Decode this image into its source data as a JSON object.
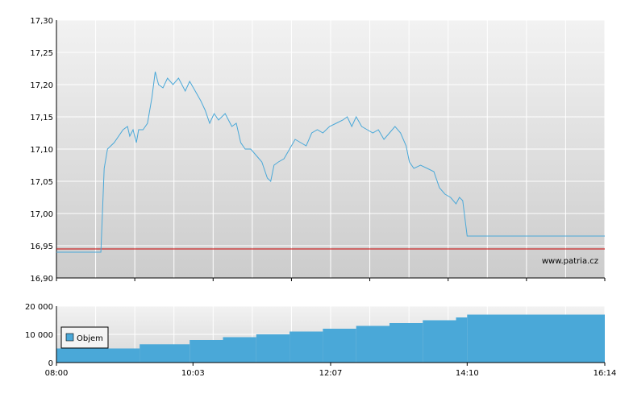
{
  "chart_data": [
    {
      "type": "line",
      "title": "",
      "xlabel": "",
      "ylabel": "",
      "ylim": [
        16.9,
        17.3
      ],
      "y_ticks": [
        "16,90",
        "16,95",
        "17,00",
        "17,05",
        "17,10",
        "17,15",
        "17,20",
        "17,25",
        "17,30"
      ],
      "grid": true,
      "reference_line": {
        "value": 16.945,
        "color": "#cc0000"
      },
      "watermark": "www.patria.cz",
      "series": [
        {
          "color": "#4aa8d8",
          "points": [
            [
              "08:00",
              16.94
            ],
            [
              "08:40",
              16.94
            ],
            [
              "08:43",
              17.07
            ],
            [
              "08:46",
              17.1
            ],
            [
              "08:52",
              17.11
            ],
            [
              "09:00",
              17.13
            ],
            [
              "09:04",
              17.135
            ],
            [
              "09:06",
              17.12
            ],
            [
              "09:09",
              17.13
            ],
            [
              "09:12",
              17.11
            ],
            [
              "09:14",
              17.13
            ],
            [
              "09:18",
              17.13
            ],
            [
              "09:22",
              17.14
            ],
            [
              "09:26",
              17.18
            ],
            [
              "09:29",
              17.22
            ],
            [
              "09:32",
              17.2
            ],
            [
              "09:36",
              17.195
            ],
            [
              "09:40",
              17.21
            ],
            [
              "09:45",
              17.2
            ],
            [
              "09:50",
              17.21
            ],
            [
              "09:56",
              17.19
            ],
            [
              "10:00",
              17.205
            ],
            [
              "10:05",
              17.19
            ],
            [
              "10:10",
              17.175
            ],
            [
              "10:14",
              17.16
            ],
            [
              "10:18",
              17.14
            ],
            [
              "10:22",
              17.155
            ],
            [
              "10:26",
              17.145
            ],
            [
              "10:32",
              17.155
            ],
            [
              "10:38",
              17.135
            ],
            [
              "10:42",
              17.14
            ],
            [
              "10:46",
              17.11
            ],
            [
              "10:50",
              17.1
            ],
            [
              "10:55",
              17.1
            ],
            [
              "11:00",
              17.09
            ],
            [
              "11:05",
              17.08
            ],
            [
              "11:10",
              17.055
            ],
            [
              "11:13",
              17.05
            ],
            [
              "11:16",
              17.075
            ],
            [
              "11:20",
              17.08
            ],
            [
              "11:25",
              17.085
            ],
            [
              "11:30",
              17.1
            ],
            [
              "11:35",
              17.115
            ],
            [
              "11:40",
              17.11
            ],
            [
              "11:45",
              17.105
            ],
            [
              "11:50",
              17.125
            ],
            [
              "11:55",
              17.13
            ],
            [
              "12:00",
              17.125
            ],
            [
              "12:06",
              17.135
            ],
            [
              "12:12",
              17.14
            ],
            [
              "12:18",
              17.145
            ],
            [
              "12:22",
              17.15
            ],
            [
              "12:26",
              17.135
            ],
            [
              "12:30",
              17.15
            ],
            [
              "12:35",
              17.135
            ],
            [
              "12:40",
              17.13
            ],
            [
              "12:45",
              17.125
            ],
            [
              "12:50",
              17.13
            ],
            [
              "12:55",
              17.115
            ],
            [
              "13:00",
              17.125
            ],
            [
              "13:05",
              17.135
            ],
            [
              "13:10",
              17.125
            ],
            [
              "13:15",
              17.105
            ],
            [
              "13:18",
              17.08
            ],
            [
              "13:22",
              17.07
            ],
            [
              "13:28",
              17.075
            ],
            [
              "13:34",
              17.07
            ],
            [
              "13:40",
              17.065
            ],
            [
              "13:45",
              17.04
            ],
            [
              "13:50",
              17.03
            ],
            [
              "13:55",
              17.025
            ],
            [
              "14:00",
              17.015
            ],
            [
              "14:03",
              17.025
            ],
            [
              "14:06",
              17.02
            ],
            [
              "14:10",
              16.965
            ],
            [
              "16:14",
              16.965
            ]
          ]
        }
      ]
    },
    {
      "type": "bar",
      "title": "",
      "xlabel": "",
      "ylabel": "",
      "ylim": [
        0,
        20000
      ],
      "y_ticks": [
        "0",
        "10 000",
        "20 000"
      ],
      "x_ticks": [
        "08:00",
        "10:03",
        "12:07",
        "14:10",
        "16:14"
      ],
      "x_range": [
        "08:00",
        "16:14"
      ],
      "grid": true,
      "legend": {
        "position": "top-left",
        "entries": [
          {
            "name": "Objem",
            "color": "#4aa8d8"
          }
        ]
      },
      "series": [
        {
          "name": "Objem",
          "color": "#4aa8d8",
          "points": [
            [
              "08:00",
              5000
            ],
            [
              "09:05",
              5000
            ],
            [
              "09:15",
              6500
            ],
            [
              "10:00",
              8000
            ],
            [
              "10:30",
              9000
            ],
            [
              "11:00",
              10000
            ],
            [
              "11:30",
              11000
            ],
            [
              "12:00",
              12000
            ],
            [
              "12:30",
              13000
            ],
            [
              "13:00",
              14000
            ],
            [
              "13:30",
              15000
            ],
            [
              "14:00",
              16000
            ],
            [
              "14:10",
              17000
            ],
            [
              "16:14",
              17000
            ]
          ]
        }
      ]
    }
  ]
}
